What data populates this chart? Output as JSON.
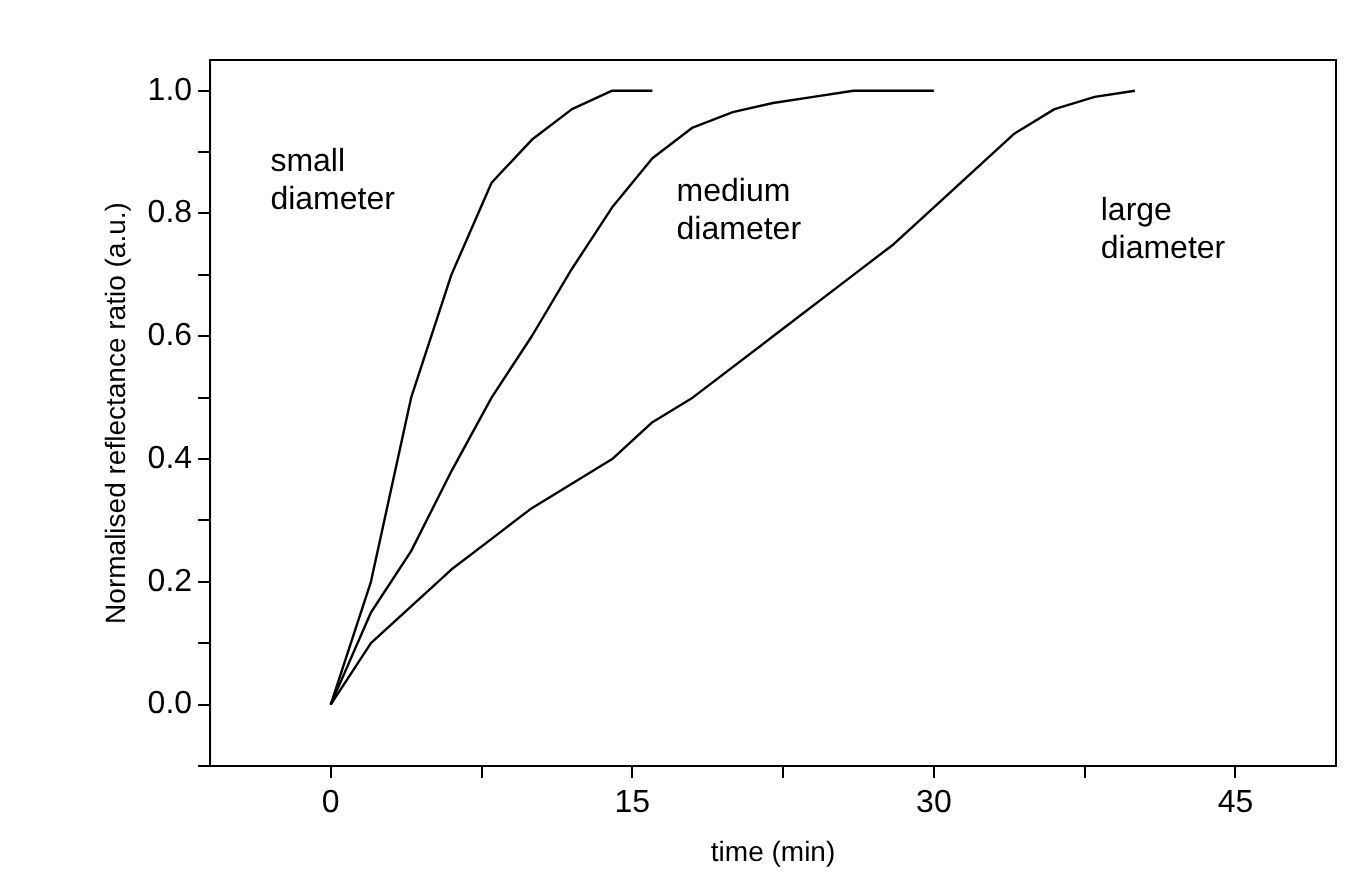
{
  "chart_data": {
    "type": "line",
    "xlabel": "time (min)",
    "ylabel": "Normalised reflectance ratio (a.u.)",
    "xlim": [
      -6,
      50
    ],
    "ylim": [
      -0.1,
      1.05
    ],
    "xticks": [
      0,
      {
        "value": 7.5,
        "label": null
      },
      15,
      {
        "value": 22.5,
        "label": null
      },
      30,
      {
        "value": 37.5,
        "label": null
      },
      45
    ],
    "yticks": [
      {
        "value": -0.1,
        "label": null
      },
      "0.0",
      {
        "value": 0.1,
        "label": null
      },
      0.2,
      {
        "value": 0.3,
        "label": null
      },
      0.4,
      {
        "value": 0.5,
        "label": null
      },
      0.6,
      {
        "value": 0.7,
        "label": null
      },
      0.8,
      {
        "value": 0.9,
        "label": null
      },
      "1.0"
    ],
    "marker": "none",
    "line_style": "solid",
    "legend": false,
    "series": [
      {
        "name": "small diameter",
        "color": "#000000",
        "x": [
          0,
          2,
          4,
          6,
          8,
          10,
          12,
          14,
          16
        ],
        "values": [
          0,
          0.2,
          0.5,
          0.7,
          0.85,
          0.92,
          0.97,
          1.0,
          1.0
        ]
      },
      {
        "name": "medium diameter",
        "color": "#000000",
        "x": [
          0,
          2,
          4,
          6,
          8,
          10,
          12,
          14,
          16,
          18,
          20,
          22,
          24,
          26,
          30
        ],
        "values": [
          0,
          0.15,
          0.25,
          0.38,
          0.5,
          0.6,
          0.71,
          0.81,
          0.89,
          0.94,
          0.965,
          0.98,
          0.99,
          1.0,
          1.0
        ]
      },
      {
        "name": "large diameter",
        "color": "#000000",
        "x": [
          0,
          2,
          4,
          6,
          8,
          10,
          14,
          16,
          18,
          22,
          26,
          28,
          30,
          34,
          36,
          38,
          40
        ],
        "values": [
          0,
          0.1,
          0.16,
          0.22,
          0.27,
          0.32,
          0.4,
          0.46,
          0.5,
          0.6,
          0.7,
          0.75,
          0.81,
          0.93,
          0.97,
          0.99,
          1.0
        ]
      }
    ]
  }
}
